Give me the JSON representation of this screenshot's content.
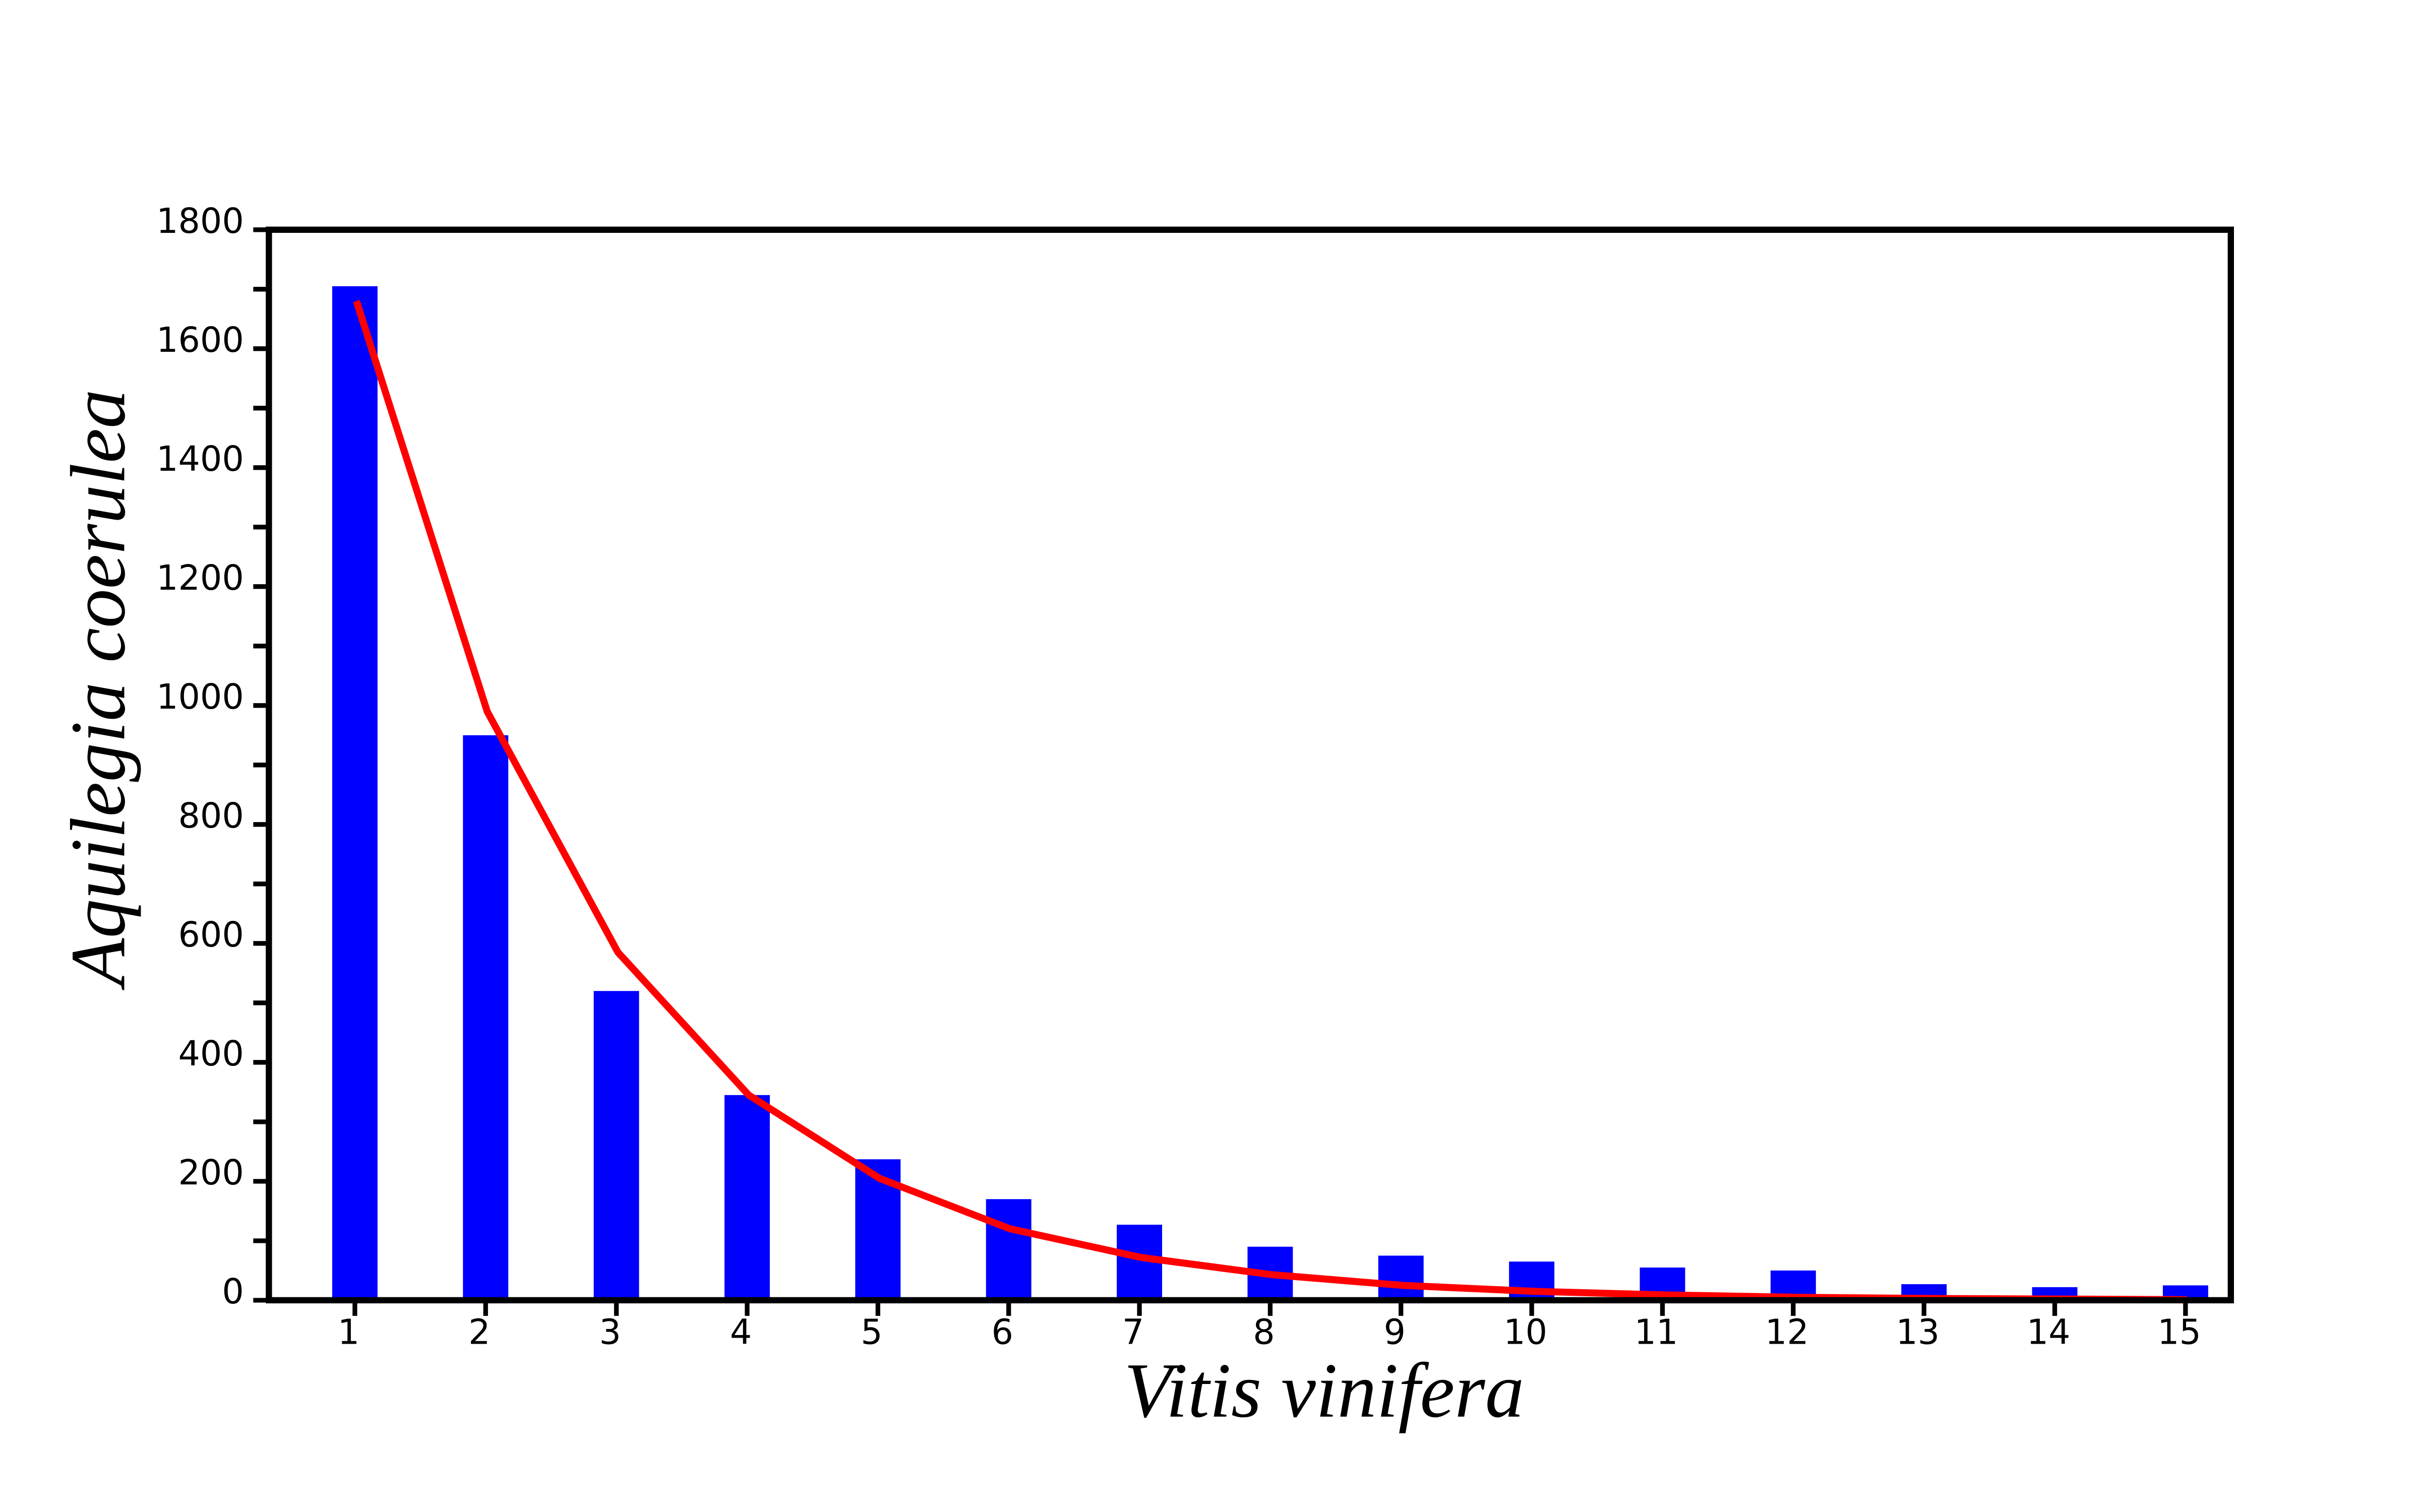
{
  "chart_data": {
    "type": "bar",
    "x_label": "Vitis vinifera",
    "y_label": "Aquilegia coerulea",
    "categories": [
      "1",
      "2",
      "3",
      "4",
      "5",
      "6",
      "7",
      "8",
      "9",
      "10",
      "11",
      "12",
      "13",
      "14",
      "15"
    ],
    "series": [
      {
        "type": "bar",
        "color": "#0000ff",
        "values": [
          1705,
          950,
          520,
          345,
          237,
          170,
          127,
          90,
          75,
          65,
          55,
          50,
          27,
          22,
          25
        ]
      },
      {
        "type": "line",
        "color": "#ff0000",
        "values": [
          1680,
          990,
          585,
          345,
          205,
          120,
          72,
          43,
          25,
          15,
          9,
          5,
          3,
          2,
          1
        ]
      }
    ],
    "ylim": [
      0,
      1800
    ],
    "yticks": [
      0,
      200,
      400,
      600,
      800,
      1000,
      1200,
      1400,
      1600,
      1800
    ],
    "yminorticks": [
      100,
      300,
      500,
      700,
      900,
      1100,
      1300,
      1500,
      1700
    ],
    "grid": false
  }
}
